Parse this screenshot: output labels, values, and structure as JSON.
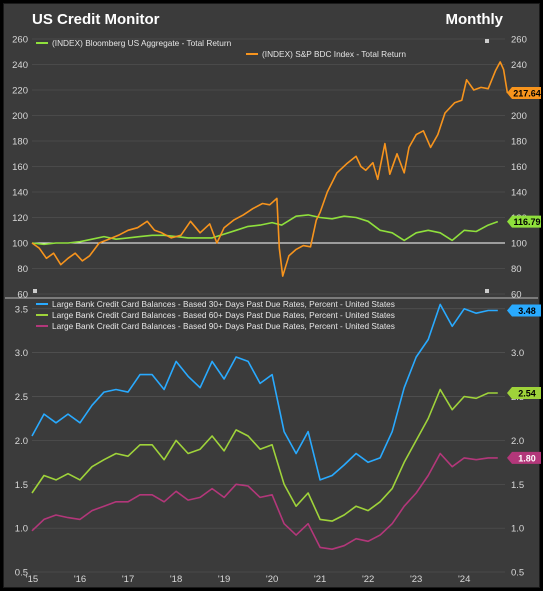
{
  "header": {
    "title": "US Credit Monitor",
    "frequency": "Monthly"
  },
  "colors": {
    "background": "#3b3b3b",
    "grid": "#5a5a5a",
    "axis_text": "#d8d8d8",
    "agg": "#8fe03c",
    "bdc": "#f7941d",
    "d30": "#29aaff",
    "d60": "#9fd33a",
    "d90": "#b3377a"
  },
  "chart_data": [
    {
      "type": "line",
      "title": "",
      "ylim": [
        60,
        260
      ],
      "y_ticks": [
        "60",
        "80",
        "100",
        "120",
        "140",
        "160",
        "180",
        "200",
        "220",
        "240",
        "260"
      ],
      "y_ticks_right": [
        "60",
        "80",
        "100",
        "120",
        "140",
        "160",
        "180",
        "200",
        "220",
        "240",
        "260"
      ],
      "x_range": [
        2015.0,
        2024.85
      ],
      "reference_line": 100,
      "series": [
        {
          "name": "(INDEX) Bloomberg US Aggregate - Total Return",
          "color_key": "agg",
          "last_label": "116.79",
          "points": [
            [
              2015.0,
              100
            ],
            [
              2015.25,
              99
            ],
            [
              2015.5,
              100
            ],
            [
              2015.75,
              100
            ],
            [
              2016.0,
              101
            ],
            [
              2016.25,
              103
            ],
            [
              2016.5,
              105
            ],
            [
              2016.75,
              103
            ],
            [
              2017.0,
              104
            ],
            [
              2017.25,
              105
            ],
            [
              2017.5,
              106
            ],
            [
              2017.75,
              106
            ],
            [
              2018.0,
              105
            ],
            [
              2018.25,
              104
            ],
            [
              2018.5,
              104
            ],
            [
              2018.75,
              104
            ],
            [
              2019.0,
              107
            ],
            [
              2019.25,
              110
            ],
            [
              2019.5,
              113
            ],
            [
              2019.75,
              114
            ],
            [
              2020.0,
              116
            ],
            [
              2020.2,
              114
            ],
            [
              2020.5,
              121
            ],
            [
              2020.75,
              122
            ],
            [
              2021.0,
              120
            ],
            [
              2021.25,
              119
            ],
            [
              2021.5,
              121
            ],
            [
              2021.75,
              120
            ],
            [
              2022.0,
              117
            ],
            [
              2022.25,
              110
            ],
            [
              2022.5,
              108
            ],
            [
              2022.75,
              102
            ],
            [
              2023.0,
              108
            ],
            [
              2023.25,
              110
            ],
            [
              2023.5,
              108
            ],
            [
              2023.75,
              102
            ],
            [
              2024.0,
              110
            ],
            [
              2024.25,
              109
            ],
            [
              2024.5,
              114
            ],
            [
              2024.7,
              116.79
            ]
          ]
        },
        {
          "name": "(INDEX) S&P BDC Index - Total Return",
          "color_key": "bdc",
          "last_label": "217.64",
          "points": [
            [
              2015.0,
              100
            ],
            [
              2015.15,
              96
            ],
            [
              2015.3,
              88
            ],
            [
              2015.45,
              92
            ],
            [
              2015.6,
              83
            ],
            [
              2015.75,
              88
            ],
            [
              2015.9,
              92
            ],
            [
              2016.05,
              86
            ],
            [
              2016.2,
              90
            ],
            [
              2016.4,
              100
            ],
            [
              2016.6,
              103
            ],
            [
              2016.8,
              106
            ],
            [
              2017.0,
              110
            ],
            [
              2017.2,
              112
            ],
            [
              2017.4,
              117
            ],
            [
              2017.55,
              110
            ],
            [
              2017.7,
              108
            ],
            [
              2017.9,
              104
            ],
            [
              2018.1,
              106
            ],
            [
              2018.3,
              117
            ],
            [
              2018.5,
              108
            ],
            [
              2018.7,
              115
            ],
            [
              2018.85,
              100
            ],
            [
              2019.0,
              112
            ],
            [
              2019.2,
              118
            ],
            [
              2019.4,
              122
            ],
            [
              2019.6,
              127
            ],
            [
              2019.8,
              131
            ],
            [
              2019.95,
              130
            ],
            [
              2020.1,
              135
            ],
            [
              2020.15,
              96
            ],
            [
              2020.22,
              74
            ],
            [
              2020.35,
              90
            ],
            [
              2020.5,
              95
            ],
            [
              2020.65,
              98
            ],
            [
              2020.8,
              97
            ],
            [
              2020.92,
              118
            ],
            [
              2021.0,
              124
            ],
            [
              2021.15,
              140
            ],
            [
              2021.35,
              155
            ],
            [
              2021.55,
              162
            ],
            [
              2021.75,
              168
            ],
            [
              2021.85,
              160
            ],
            [
              2021.95,
              157
            ],
            [
              2022.1,
              163
            ],
            [
              2022.2,
              150
            ],
            [
              2022.35,
              178
            ],
            [
              2022.45,
              154
            ],
            [
              2022.6,
              170
            ],
            [
              2022.75,
              155
            ],
            [
              2022.85,
              175
            ],
            [
              2023.0,
              185
            ],
            [
              2023.15,
              188
            ],
            [
              2023.3,
              175
            ],
            [
              2023.45,
              185
            ],
            [
              2023.6,
              202
            ],
            [
              2023.8,
              210
            ],
            [
              2023.95,
              212
            ],
            [
              2024.05,
              228
            ],
            [
              2024.2,
              220
            ],
            [
              2024.35,
              222
            ],
            [
              2024.5,
              221
            ],
            [
              2024.65,
              235
            ],
            [
              2024.75,
              242
            ],
            [
              2024.82,
              236
            ],
            [
              2024.9,
              217.64
            ]
          ]
        }
      ]
    },
    {
      "type": "line",
      "title": "",
      "ylim": [
        0.5,
        3.6
      ],
      "y_ticks": [
        "0.5",
        "1.0",
        "1.5",
        "2.0",
        "2.5",
        "3.0",
        "3.5"
      ],
      "x_range": [
        2015.0,
        2024.85
      ],
      "x_ticks": [
        "'15",
        "'16",
        "'17",
        "'18",
        "'19",
        "'20",
        "'21",
        "'22",
        "'23",
        "'24"
      ],
      "x_tick_values": [
        2015,
        2016,
        2017,
        2018,
        2019,
        2020,
        2021,
        2022,
        2023,
        2024
      ],
      "series": [
        {
          "name": "Large Bank Credit Card Balances - Based 30+ Days Past Due Rates, Percent - United States",
          "color_key": "d30",
          "last_label": "3.48",
          "points": [
            [
              2015.0,
              2.05
            ],
            [
              2015.25,
              2.3
            ],
            [
              2015.5,
              2.2
            ],
            [
              2015.75,
              2.3
            ],
            [
              2016.0,
              2.2
            ],
            [
              2016.25,
              2.4
            ],
            [
              2016.5,
              2.55
            ],
            [
              2016.75,
              2.58
            ],
            [
              2017.0,
              2.55
            ],
            [
              2017.25,
              2.75
            ],
            [
              2017.5,
              2.75
            ],
            [
              2017.75,
              2.58
            ],
            [
              2018.0,
              2.9
            ],
            [
              2018.25,
              2.73
            ],
            [
              2018.5,
              2.6
            ],
            [
              2018.75,
              2.9
            ],
            [
              2019.0,
              2.7
            ],
            [
              2019.25,
              2.95
            ],
            [
              2019.5,
              2.9
            ],
            [
              2019.75,
              2.65
            ],
            [
              2020.0,
              2.75
            ],
            [
              2020.25,
              2.1
            ],
            [
              2020.5,
              1.85
            ],
            [
              2020.75,
              2.1
            ],
            [
              2021.0,
              1.55
            ],
            [
              2021.25,
              1.6
            ],
            [
              2021.5,
              1.72
            ],
            [
              2021.75,
              1.85
            ],
            [
              2022.0,
              1.75
            ],
            [
              2022.25,
              1.8
            ],
            [
              2022.5,
              2.1
            ],
            [
              2022.75,
              2.6
            ],
            [
              2023.0,
              2.95
            ],
            [
              2023.25,
              3.15
            ],
            [
              2023.5,
              3.55
            ],
            [
              2023.75,
              3.3
            ],
            [
              2024.0,
              3.5
            ],
            [
              2024.25,
              3.45
            ],
            [
              2024.5,
              3.48
            ],
            [
              2024.7,
              3.48
            ]
          ]
        },
        {
          "name": "Large Bank Credit Card Balances - Based 60+ Days Past Due Rates, Percent - United States",
          "color_key": "d60",
          "last_label": "2.54",
          "points": [
            [
              2015.0,
              1.4
            ],
            [
              2015.25,
              1.6
            ],
            [
              2015.5,
              1.55
            ],
            [
              2015.75,
              1.62
            ],
            [
              2016.0,
              1.55
            ],
            [
              2016.25,
              1.7
            ],
            [
              2016.5,
              1.78
            ],
            [
              2016.75,
              1.85
            ],
            [
              2017.0,
              1.82
            ],
            [
              2017.25,
              1.95
            ],
            [
              2017.5,
              1.95
            ],
            [
              2017.75,
              1.78
            ],
            [
              2018.0,
              2.0
            ],
            [
              2018.25,
              1.85
            ],
            [
              2018.5,
              1.9
            ],
            [
              2018.75,
              2.05
            ],
            [
              2019.0,
              1.88
            ],
            [
              2019.25,
              2.12
            ],
            [
              2019.5,
              2.05
            ],
            [
              2019.75,
              1.9
            ],
            [
              2020.0,
              1.95
            ],
            [
              2020.25,
              1.5
            ],
            [
              2020.5,
              1.25
            ],
            [
              2020.75,
              1.4
            ],
            [
              2021.0,
              1.1
            ],
            [
              2021.25,
              1.08
            ],
            [
              2021.5,
              1.15
            ],
            [
              2021.75,
              1.25
            ],
            [
              2022.0,
              1.2
            ],
            [
              2022.25,
              1.3
            ],
            [
              2022.5,
              1.45
            ],
            [
              2022.75,
              1.75
            ],
            [
              2023.0,
              2.0
            ],
            [
              2023.25,
              2.25
            ],
            [
              2023.5,
              2.58
            ],
            [
              2023.75,
              2.35
            ],
            [
              2024.0,
              2.5
            ],
            [
              2024.25,
              2.48
            ],
            [
              2024.5,
              2.54
            ],
            [
              2024.7,
              2.54
            ]
          ]
        },
        {
          "name": "Large Bank Credit Card Balances - Based 90+ Days Past Due Rates, Percent - United States",
          "color_key": "d90",
          "last_label": "1.80",
          "points": [
            [
              2015.0,
              0.97
            ],
            [
              2015.25,
              1.1
            ],
            [
              2015.5,
              1.15
            ],
            [
              2015.75,
              1.12
            ],
            [
              2016.0,
              1.1
            ],
            [
              2016.25,
              1.2
            ],
            [
              2016.5,
              1.25
            ],
            [
              2016.75,
              1.3
            ],
            [
              2017.0,
              1.3
            ],
            [
              2017.25,
              1.38
            ],
            [
              2017.5,
              1.38
            ],
            [
              2017.75,
              1.3
            ],
            [
              2018.0,
              1.42
            ],
            [
              2018.25,
              1.32
            ],
            [
              2018.5,
              1.35
            ],
            [
              2018.75,
              1.45
            ],
            [
              2019.0,
              1.35
            ],
            [
              2019.25,
              1.5
            ],
            [
              2019.5,
              1.48
            ],
            [
              2019.75,
              1.35
            ],
            [
              2020.0,
              1.38
            ],
            [
              2020.25,
              1.05
            ],
            [
              2020.5,
              0.92
            ],
            [
              2020.75,
              1.05
            ],
            [
              2021.0,
              0.78
            ],
            [
              2021.25,
              0.76
            ],
            [
              2021.5,
              0.8
            ],
            [
              2021.75,
              0.88
            ],
            [
              2022.0,
              0.85
            ],
            [
              2022.25,
              0.92
            ],
            [
              2022.5,
              1.05
            ],
            [
              2022.75,
              1.25
            ],
            [
              2023.0,
              1.4
            ],
            [
              2023.25,
              1.6
            ],
            [
              2023.5,
              1.85
            ],
            [
              2023.75,
              1.7
            ],
            [
              2024.0,
              1.8
            ],
            [
              2024.25,
              1.78
            ],
            [
              2024.5,
              1.8
            ],
            [
              2024.7,
              1.8
            ]
          ]
        }
      ]
    }
  ]
}
